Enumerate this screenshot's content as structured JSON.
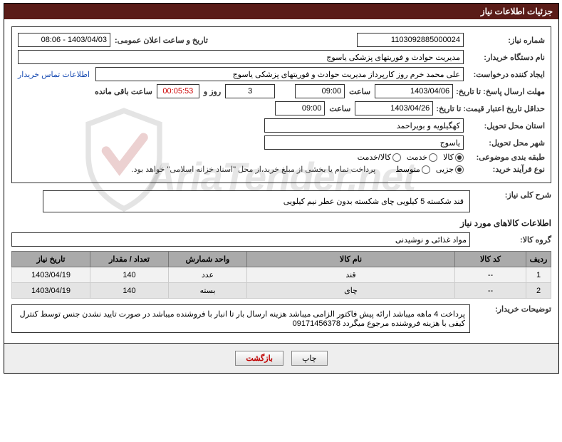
{
  "panel": {
    "title": "جزئیات اطلاعات نیاز"
  },
  "labels": {
    "need_number": "شماره نیاز:",
    "announce_datetime": "تاریخ و ساعت اعلان عمومی:",
    "buyer_org": "نام دستگاه خریدار:",
    "requester": "ایجاد کننده درخواست:",
    "contact_link": "اطلاعات تماس خریدار",
    "reply_deadline": "مهلت ارسال پاسخ: تا تاریخ:",
    "hour": "ساعت",
    "days_and": "روز و",
    "remaining": "ساعت باقی مانده",
    "price_validity": "حداقل تاریخ اعتبار قیمت: تا تاریخ:",
    "delivery_province": "استان محل تحویل:",
    "delivery_city": "شهر محل تحویل:",
    "subject_class": "طبقه بندی موضوعی:",
    "goods": "کالا",
    "service": "خدمت",
    "goods_service": "کالا/خدمت",
    "purchase_type": "نوع فرآیند خرید:",
    "partial": "جزیی",
    "medium": "متوسط",
    "payment_note": "پرداخت تمام یا بخشی از مبلغ خرید،از محل \"اسناد خزانه اسلامی\" خواهد بود.",
    "summary": "شرح کلی نیاز:",
    "items_info": "اطلاعات کالاهای مورد نیاز",
    "goods_group": "گروه کالا:",
    "buyer_notes": "توضیحات خریدار:"
  },
  "values": {
    "need_number": "1103092885000024",
    "announce_datetime": "1403/04/03 - 08:06",
    "buyer_org": "مدیریت حوادث و فوریتهای پزشکی یاسوج",
    "requester": "علی محمد خرم روز کارپرداز مدیریت حوادث و فوریتهای پزشکی یاسوج",
    "reply_date": "1403/04/06",
    "reply_time": "09:00",
    "remaining_days": "3",
    "remaining_time": "00:05:53",
    "price_validity_date": "1403/04/26",
    "price_validity_time": "09:00",
    "province": "کهگیلویه و بویراحمد",
    "city": "یاسوج",
    "summary": "قند شکسته 5 کیلویی    چای شکسته بدون عطر نیم کیلویی",
    "goods_group": "مواد غذائی و نوشیدنی",
    "buyer_notes": "پرداخت 4 ماهه میباشد  ارائه پیش فاکتور الزامی میباشد  هزینه ارسال بار تا انبار  با فروشنده میباشد در صورت تایید نشدن جنس توسط کنترل کیفی با  هزینه فروشنده مرجوع میگردد 09171456378"
  },
  "table": {
    "headers": {
      "idx": "ردیف",
      "code": "کد کالا",
      "name": "نام کالا",
      "unit": "واحد شمارش",
      "qty": "تعداد / مقدار",
      "date": "تاریخ نیاز"
    },
    "rows": [
      {
        "idx": "1",
        "code": "--",
        "name": "قند",
        "unit": "عدد",
        "qty": "140",
        "date": "1403/04/19"
      },
      {
        "idx": "2",
        "code": "--",
        "name": "چای",
        "unit": "بسته",
        "qty": "140",
        "date": "1403/04/19"
      }
    ]
  },
  "buttons": {
    "print": "چاپ",
    "return": "بازگشت"
  },
  "watermark": "AriaTender.net"
}
